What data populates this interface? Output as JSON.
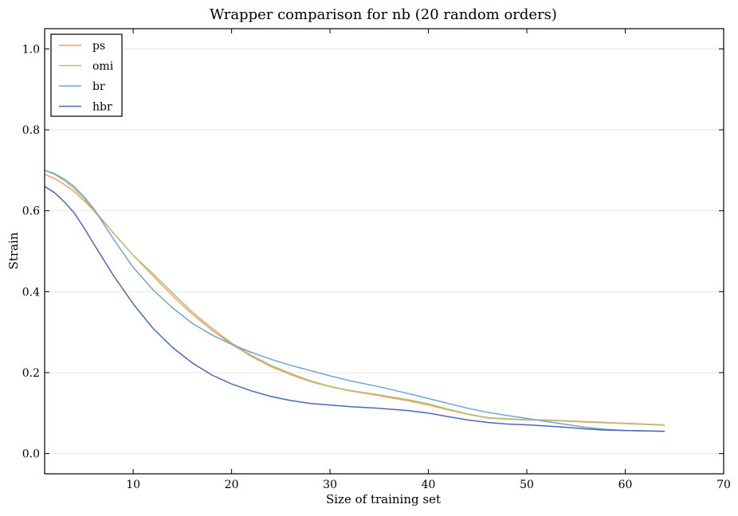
{
  "chart_data": {
    "type": "line",
    "title": "Wrapper comparison for nb (20 random orders)",
    "xlabel": "Size of training set",
    "ylabel": "Strain",
    "xlim": [
      1,
      70
    ],
    "ylim": [
      -0.05,
      1.05
    ],
    "xticks": [
      "10",
      "20",
      "30",
      "40",
      "50",
      "60",
      "70"
    ],
    "xtick_values": [
      10,
      20,
      30,
      40,
      50,
      60,
      70
    ],
    "yticks": [
      "0.0",
      "0.2",
      "0.4",
      "0.6",
      "0.8",
      "1.0"
    ],
    "ytick_values": [
      0.0,
      0.2,
      0.4,
      0.6,
      0.8,
      1.0
    ],
    "grid": "horizontal",
    "legend_position": "top-left",
    "series": [
      {
        "name": "ps",
        "color": "#f0a060",
        "x": [
          1,
          2,
          3,
          4,
          5,
          6,
          8,
          10,
          12,
          14,
          16,
          18,
          20,
          22,
          24,
          26,
          28,
          30,
          32,
          35,
          38,
          40,
          42,
          44,
          46,
          48,
          50,
          52,
          54,
          56,
          58,
          60,
          62,
          64
        ],
        "y": [
          0.69,
          0.68,
          0.665,
          0.648,
          0.625,
          0.6,
          0.545,
          0.49,
          0.44,
          0.39,
          0.345,
          0.305,
          0.27,
          0.24,
          0.215,
          0.195,
          0.178,
          0.165,
          0.155,
          0.143,
          0.13,
          0.12,
          0.108,
          0.097,
          0.088,
          0.085,
          0.083,
          0.082,
          0.08,
          0.078,
          0.076,
          0.074,
          0.072,
          0.07
        ]
      },
      {
        "name": "omi",
        "color": "#b5c07a",
        "x": [
          1,
          2,
          3,
          4,
          5,
          6,
          8,
          10,
          12,
          14,
          16,
          18,
          20,
          22,
          24,
          26,
          28,
          30,
          32,
          35,
          38,
          40,
          42,
          44,
          46,
          48,
          50,
          52,
          54,
          56,
          58,
          60,
          62,
          64
        ],
        "y": [
          0.7,
          0.69,
          0.675,
          0.655,
          0.63,
          0.603,
          0.545,
          0.49,
          0.445,
          0.397,
          0.35,
          0.31,
          0.273,
          0.243,
          0.218,
          0.198,
          0.18,
          0.166,
          0.156,
          0.145,
          0.133,
          0.123,
          0.11,
          0.098,
          0.089,
          0.086,
          0.084,
          0.083,
          0.081,
          0.079,
          0.077,
          0.075,
          0.073,
          0.071
        ]
      },
      {
        "name": "br",
        "color": "#6fa6d0",
        "x": [
          1,
          2,
          3,
          4,
          5,
          6,
          8,
          10,
          12,
          14,
          16,
          18,
          20,
          22,
          24,
          26,
          28,
          30,
          32,
          35,
          38,
          40,
          42,
          44,
          46,
          48,
          50,
          52,
          54,
          56,
          58,
          60,
          62,
          64
        ],
        "y": [
          0.7,
          0.692,
          0.678,
          0.66,
          0.635,
          0.605,
          0.53,
          0.46,
          0.405,
          0.36,
          0.322,
          0.293,
          0.27,
          0.25,
          0.233,
          0.218,
          0.205,
          0.192,
          0.18,
          0.165,
          0.148,
          0.136,
          0.124,
          0.112,
          0.102,
          0.094,
          0.087,
          0.079,
          0.072,
          0.065,
          0.06,
          0.057,
          0.056,
          0.055
        ]
      },
      {
        "name": "hbr",
        "color": "#4a68b5",
        "x": [
          1,
          2,
          3,
          4,
          5,
          6,
          8,
          10,
          12,
          14,
          16,
          18,
          20,
          22,
          24,
          26,
          28,
          30,
          32,
          35,
          38,
          40,
          42,
          44,
          46,
          48,
          50,
          52,
          54,
          56,
          58,
          60,
          62,
          64
        ],
        "y": [
          0.66,
          0.645,
          0.622,
          0.595,
          0.558,
          0.518,
          0.44,
          0.37,
          0.31,
          0.262,
          0.224,
          0.194,
          0.172,
          0.155,
          0.141,
          0.131,
          0.124,
          0.12,
          0.116,
          0.112,
          0.106,
          0.1,
          0.091,
          0.083,
          0.077,
          0.073,
          0.071,
          0.068,
          0.065,
          0.061,
          0.058,
          0.057,
          0.056,
          0.055
        ]
      }
    ]
  }
}
